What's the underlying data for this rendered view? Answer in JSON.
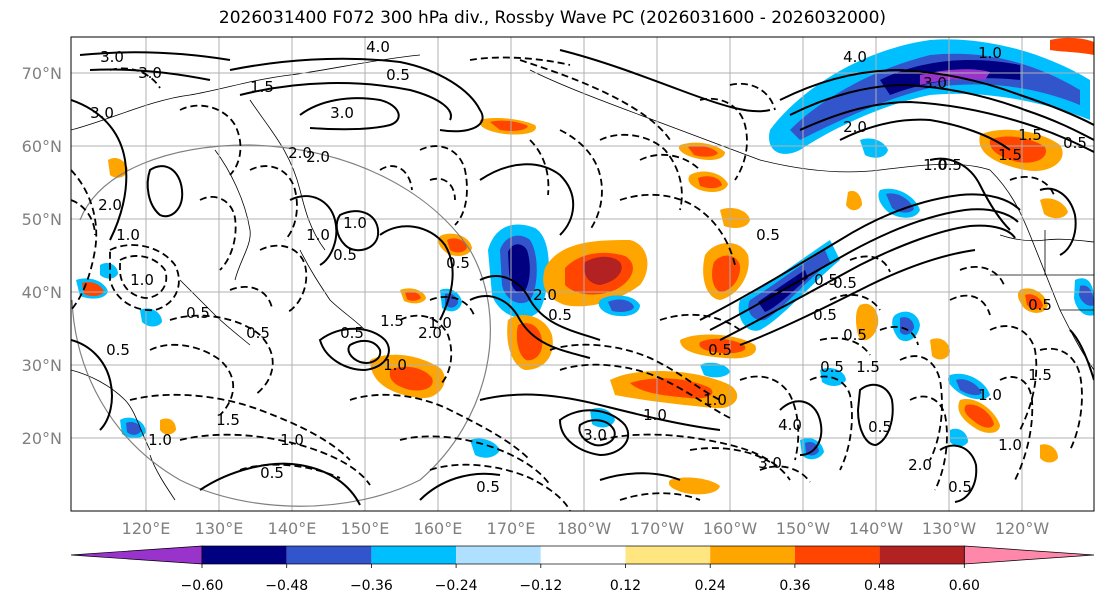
{
  "title": "2026031400 F072 300 hPa div., Rossby Wave PC (2026031600 - 2026032000)",
  "lat_labels": [
    "70°N",
    "60°N",
    "50°N",
    "40°N",
    "30°N",
    "20°N"
  ],
  "lon_labels": [
    "120°E",
    "130°E",
    "140°E",
    "150°E",
    "160°E",
    "170°E",
    "180°W",
    "170°W",
    "160°W",
    "150°W",
    "140°W",
    "130°W",
    "120°W"
  ],
  "colorbar": {
    "ticks": [
      "−0.60",
      "−0.48",
      "−0.36",
      "−0.24",
      "−0.12",
      "0.12",
      "0.24",
      "0.36",
      "0.48",
      "0.60"
    ],
    "colors": {
      "under": "#9933cc",
      "b1": "#000080",
      "b2": "#3355cc",
      "b3": "#00bfff",
      "b4": "#b0e0ff",
      "neutral": "#ffffff",
      "p1": "#ffe680",
      "p2": "#ffa500",
      "p3": "#ff4500",
      "p4": "#b22222",
      "over": "#ff88aa"
    }
  },
  "contour_labels": [
    "4.0",
    "3.0",
    "3.0",
    "3.0",
    "1.5",
    "0.5",
    "3.0",
    "2.0",
    "4.0",
    "3.0",
    "2.0",
    "1.0",
    "1.5",
    "0.5",
    "1.5",
    "0.5",
    "2.0",
    "1.0",
    "0.5",
    "1.0",
    "0.5",
    "1.5",
    "1.0",
    "2.0",
    "2.0",
    "0.5",
    "1.0",
    "0.5",
    "1.5",
    "1.0",
    "0.5",
    "1.0",
    "0.5",
    "0.5",
    "2.0",
    "1.0",
    "1.0",
    "0.5",
    "0.5",
    "3.0",
    "1.0",
    "1.0",
    "0.5",
    "0.5",
    "0.5",
    "0.5",
    "1.0",
    "0.5",
    "0.5",
    "1.5",
    "0.5",
    "4.0",
    "3.0",
    "2.0",
    "1.0",
    "0.5",
    "0.5",
    "1.5",
    "1.0",
    "0.5"
  ]
}
